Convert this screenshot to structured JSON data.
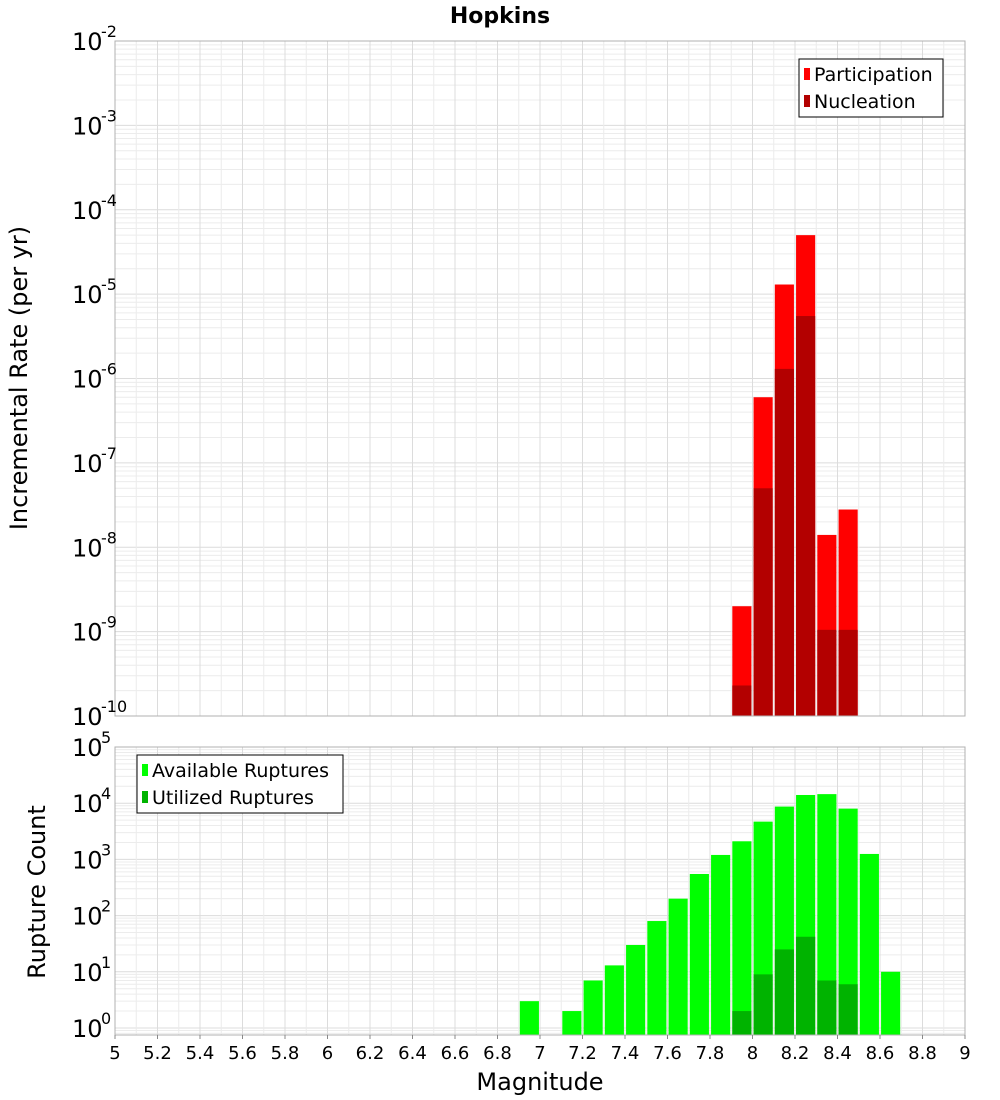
{
  "chart_data": [
    {
      "type": "bar",
      "title": "Hopkins",
      "ylabel": "Incremental Rate (per yr)",
      "xlabel": "",
      "yscale": "log",
      "ylim": [
        1e-10,
        0.01
      ],
      "xlim": [
        5,
        9
      ],
      "y_ticks": [
        {
          "base": "10",
          "exp": "-10"
        },
        {
          "base": "10",
          "exp": "-9"
        },
        {
          "base": "10",
          "exp": "-8"
        },
        {
          "base": "10",
          "exp": "-7"
        },
        {
          "base": "10",
          "exp": "-6"
        },
        {
          "base": "10",
          "exp": "-5"
        },
        {
          "base": "10",
          "exp": "-4"
        },
        {
          "base": "10",
          "exp": "-3"
        },
        {
          "base": "10",
          "exp": "-2"
        }
      ],
      "legend_position": "top-right",
      "colors": {
        "Participation": "#ff0000",
        "Nucleation": "#b30000"
      },
      "x": [
        7.95,
        8.05,
        8.15,
        8.25,
        8.35,
        8.45
      ],
      "series": [
        {
          "name": "Participation",
          "values": [
            2e-09,
            6e-07,
            1.3e-05,
            5e-05,
            1.4e-08,
            2.8e-08
          ]
        },
        {
          "name": "Nucleation",
          "values": [
            2.3e-10,
            5e-08,
            1.3e-06,
            5.5e-06,
            1.05e-09,
            1.05e-09
          ]
        }
      ]
    },
    {
      "type": "bar",
      "title": "",
      "ylabel": "Rupture Count",
      "xlabel": "Magnitude",
      "yscale": "log",
      "ylim": [
        0.75,
        100000.0
      ],
      "xlim": [
        5,
        9
      ],
      "y_ticks": [
        {
          "base": "10",
          "exp": "0"
        },
        {
          "base": "10",
          "exp": "1"
        },
        {
          "base": "10",
          "exp": "2"
        },
        {
          "base": "10",
          "exp": "3"
        },
        {
          "base": "10",
          "exp": "4"
        },
        {
          "base": "10",
          "exp": "5"
        }
      ],
      "x_tick_labels": [
        "5",
        "5.2",
        "5.4",
        "5.6",
        "5.8",
        "6",
        "6.2",
        "6.4",
        "6.6",
        "6.8",
        "7",
        "7.2",
        "7.4",
        "7.6",
        "7.8",
        "8",
        "8.2",
        "8.4",
        "8.6",
        "8.8",
        "9"
      ],
      "legend_position": "top-left",
      "colors": {
        "Available Ruptures": "#00ff00",
        "Utilized Ruptures": "#00b300"
      },
      "x": [
        6.95,
        7.15,
        7.25,
        7.35,
        7.45,
        7.55,
        7.65,
        7.75,
        7.85,
        7.95,
        8.05,
        8.15,
        8.25,
        8.35,
        8.45,
        8.55,
        8.65
      ],
      "series": [
        {
          "name": "Available Ruptures",
          "values": [
            3,
            2,
            7,
            13,
            30,
            80,
            200,
            550,
            1200,
            2100,
            4700,
            8700,
            14000,
            14500,
            8000,
            1250,
            10
          ]
        },
        {
          "name": "Utilized Ruptures",
          "values": [
            null,
            null,
            null,
            null,
            null,
            null,
            null,
            null,
            null,
            2,
            9,
            25,
            42,
            7,
            6,
            null,
            null
          ]
        }
      ]
    }
  ]
}
